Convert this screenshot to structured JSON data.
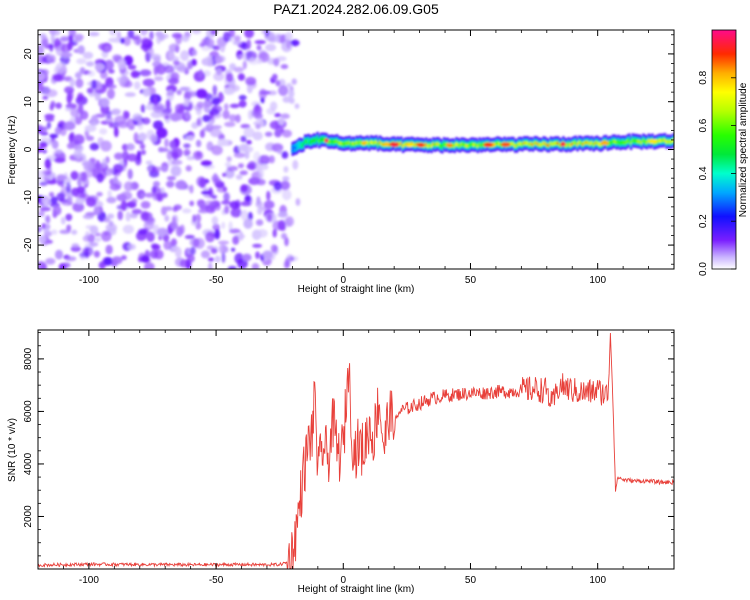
{
  "title": "PAZ1.2024.282.06.09.G05",
  "chart_data": [
    {
      "type": "heatmap",
      "xlabel": "Height of straight line (km)",
      "ylabel": "Frequency (Hz)",
      "xlim": [
        -120,
        130
      ],
      "ylim": [
        -25,
        25
      ],
      "xticks": [
        -100,
        -50,
        0,
        50,
        100
      ],
      "yticks": [
        -20,
        -10,
        0,
        10,
        20
      ],
      "colorbar": {
        "label": "Normalized spectral amplitude",
        "range": [
          0.0,
          1.0
        ],
        "ticks": [
          0.0,
          0.2,
          0.4,
          0.6,
          0.8
        ],
        "tick_labels": [
          "0.0",
          "0.2",
          "0.4",
          "0.6",
          "0.8"
        ],
        "colormap": "gist_ncar-like (white, purple, blue, cyan, green, yellow, orange, red, magenta)"
      },
      "noise_region_x": [
        -120,
        -20
      ],
      "band_frequency_hz": [
        [
          -20,
          0.0
        ],
        [
          -15,
          1.5
        ],
        [
          -10,
          2.0
        ],
        [
          -5,
          1.8
        ],
        [
          0,
          1.2
        ],
        [
          10,
          1.4
        ],
        [
          20,
          1.0
        ],
        [
          40,
          0.9
        ],
        [
          60,
          1.0
        ],
        [
          80,
          1.1
        ],
        [
          100,
          1.2
        ],
        [
          105,
          1.5
        ],
        [
          110,
          1.6
        ],
        [
          130,
          1.8
        ]
      ],
      "band_peak_amplitude": [
        [
          -20,
          0.3
        ],
        [
          -15,
          0.5
        ],
        [
          -5,
          0.6
        ],
        [
          0,
          0.7
        ],
        [
          10,
          0.75
        ],
        [
          20,
          0.95
        ],
        [
          40,
          0.7
        ],
        [
          60,
          0.75
        ],
        [
          80,
          0.85
        ],
        [
          100,
          0.8
        ],
        [
          108,
          0.6
        ],
        [
          130,
          0.75
        ]
      ]
    },
    {
      "type": "line",
      "xlabel": "Height of straight line (km)",
      "ylabel": "SNR (10 * v/v)",
      "xlim": [
        -120,
        130
      ],
      "ylim": [
        0,
        9100
      ],
      "xticks": [
        -100,
        -50,
        0,
        50,
        100
      ],
      "yticks": [
        2000,
        4000,
        6000,
        8000
      ],
      "series": [
        {
          "color": "#e8403a",
          "x": [
            -120,
            -100,
            -80,
            -60,
            -40,
            -30,
            -25,
            -22,
            -20,
            -18,
            -16,
            -14,
            -12,
            -11,
            -10,
            -8,
            -6,
            -4,
            -2,
            0,
            2,
            4,
            6,
            8,
            10,
            12,
            14,
            16,
            18,
            20,
            22,
            25,
            30,
            35,
            40,
            45,
            50,
            55,
            60,
            65,
            70,
            75,
            80,
            82,
            85,
            90,
            95,
            100,
            104,
            105,
            106,
            107,
            108,
            110,
            115,
            120,
            125,
            130
          ],
          "y": [
            150,
            180,
            170,
            160,
            170,
            160,
            170,
            250,
            600,
            1800,
            3400,
            4600,
            5300,
            6800,
            3500,
            4700,
            4200,
            5600,
            4300,
            4600,
            7800,
            4400,
            4700,
            4500,
            5400,
            5000,
            6500,
            4600,
            6000,
            5400,
            6000,
            6100,
            6300,
            6500,
            6600,
            6650,
            6700,
            6700,
            6750,
            6750,
            6800,
            6850,
            6800,
            6200,
            7000,
            6800,
            6700,
            6800,
            6600,
            9000,
            6400,
            3000,
            3500,
            3400,
            3350,
            3350,
            3300,
            3300
          ]
        }
      ]
    }
  ]
}
